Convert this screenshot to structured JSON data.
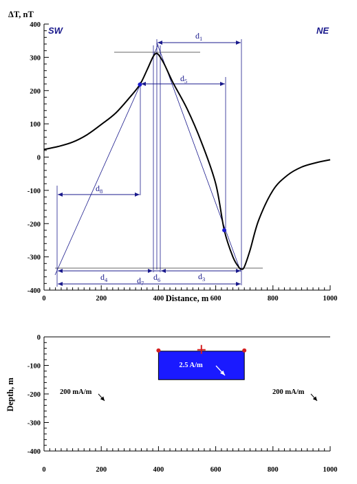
{
  "chart_data": [
    {
      "type": "line",
      "ylabel": "ΔT, nT",
      "xlabel": "Distance, m",
      "xlim": [
        0,
        1000
      ],
      "ylim": [
        -400,
        400
      ],
      "xticks": [
        "0",
        "200",
        "400",
        "600",
        "800",
        "1000"
      ],
      "yticks": [
        "400",
        "300",
        "200",
        "100",
        "0",
        "-100",
        "-200",
        "-300",
        "-400"
      ],
      "direction_left": "SW",
      "direction_right": "NE",
      "series": [
        {
          "x": [
            0,
            50,
            100,
            150,
            200,
            250,
            300,
            335,
            360,
            380,
            390,
            400,
            420,
            450,
            500,
            550,
            600,
            630,
            660,
            680,
            690,
            700,
            720,
            750,
            800,
            850,
            900,
            950,
            1000
          ],
          "y": [
            23,
            32,
            45,
            67,
            98,
            132,
            180,
            218,
            262,
            300,
            311,
            308,
            280,
            225,
            145,
            45,
            -80,
            -220,
            -300,
            -330,
            -337,
            -330,
            -280,
            -190,
            -100,
            -55,
            -30,
            -17,
            -8
          ]
        }
      ],
      "points": [
        {
          "x": 335,
          "y": 218
        },
        {
          "x": 630,
          "y": -220
        }
      ],
      "annotations": {
        "d1": "d",
        "d1_sub": "1",
        "d3": "d",
        "d3_sub": "3",
        "d4": "d",
        "d4_sub": "4",
        "d5": "d",
        "d5_sub": "5",
        "d6": "d",
        "d6_sub": "6",
        "d7": "d",
        "d7_sub": "7",
        "d8": "d",
        "d8_sub": "8"
      }
    },
    {
      "type": "scatter",
      "ylabel": "Depth, m",
      "xlim": [
        0,
        1000
      ],
      "ylim": [
        -400,
        0
      ],
      "xticks": [
        "0",
        "200",
        "400",
        "600",
        "800",
        "1000"
      ],
      "yticks": [
        "0",
        "-100",
        "-200",
        "-300",
        "-400"
      ],
      "body": {
        "x0": 400,
        "x1": 700,
        "top": -50,
        "bottom": -150,
        "color": "#1a1aff",
        "label": "2.5 A/m"
      },
      "background_labels": [
        "200 mA/m",
        "200 mA/m"
      ]
    }
  ]
}
